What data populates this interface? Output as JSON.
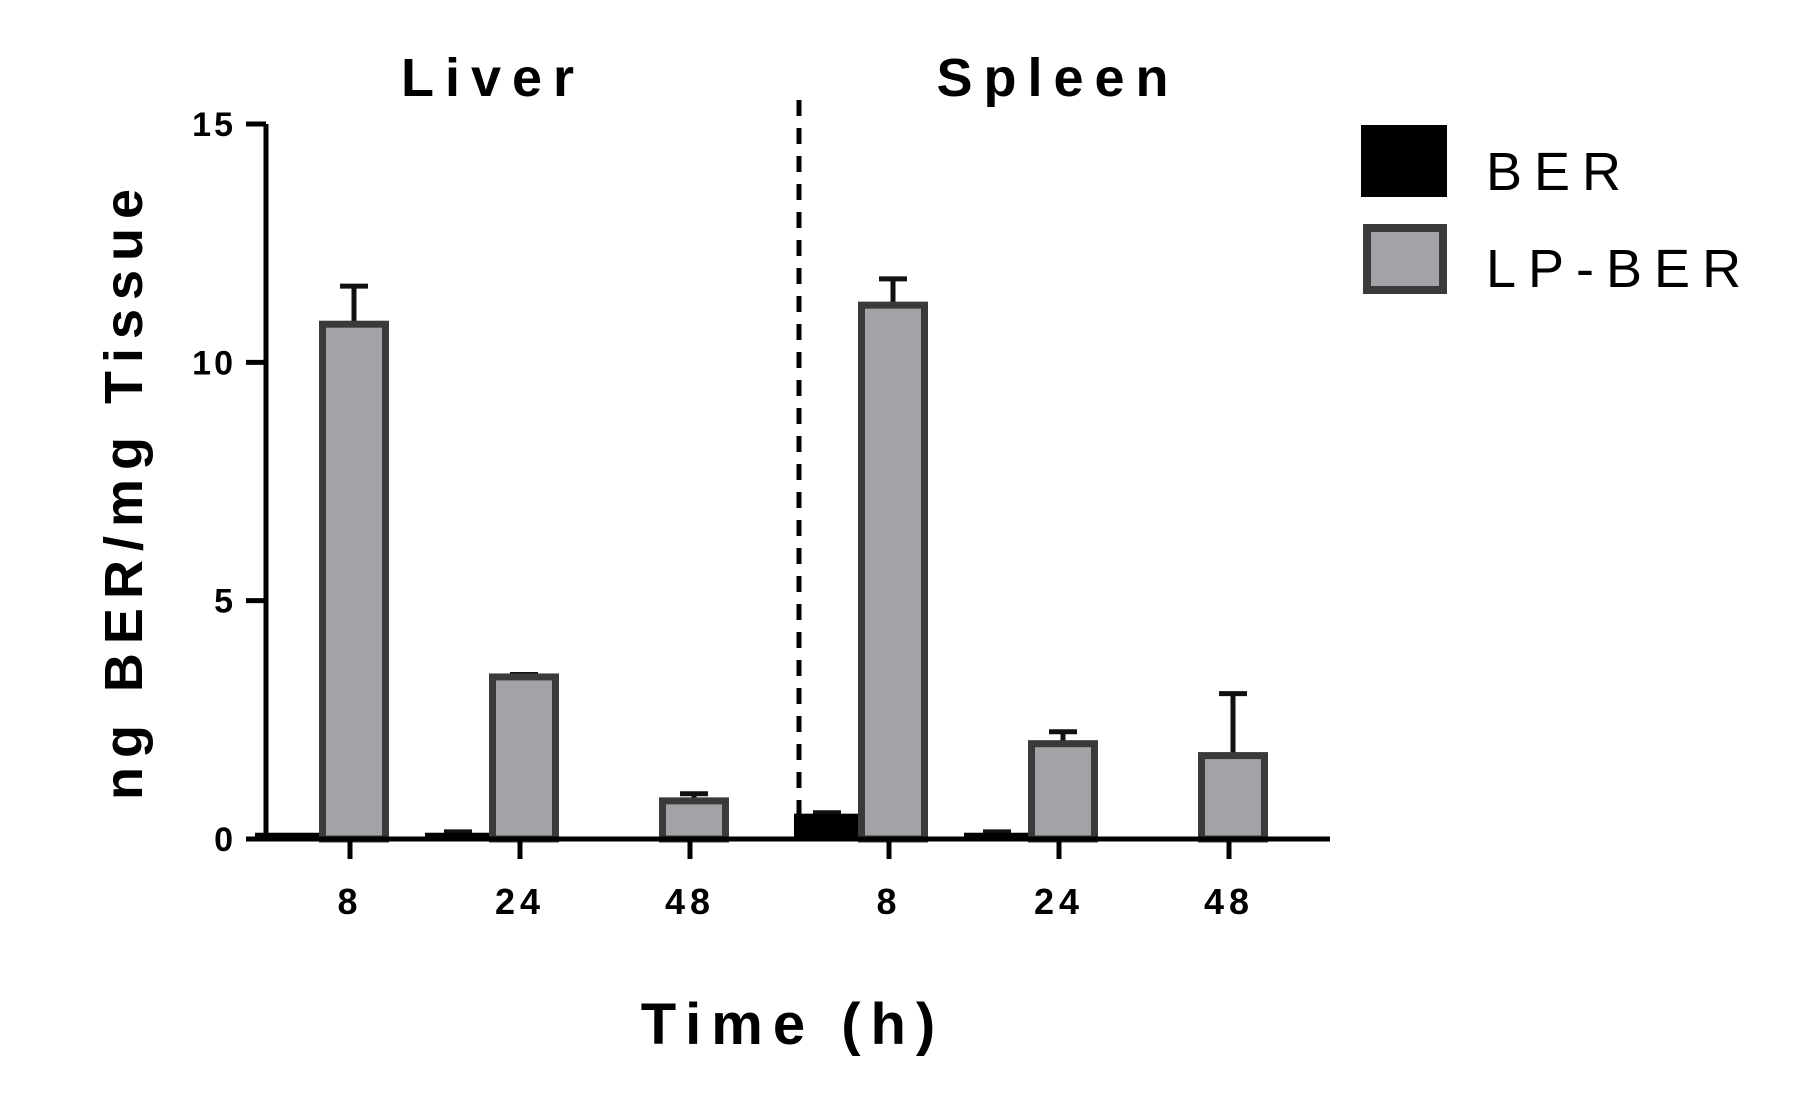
{
  "chart_data": {
    "type": "bar",
    "group_labels": [
      "Liver",
      "Spleen"
    ],
    "categories": [
      "8",
      "24",
      "48",
      "8",
      "24",
      "48"
    ],
    "xlabel": "Time (h)",
    "ylabel": "ng BER/mg Tissue",
    "ylim": [
      0,
      15
    ],
    "yticks": [
      0,
      5,
      10,
      15
    ],
    "legend_position": "right",
    "series": [
      {
        "name": "BER",
        "color": "#000000",
        "stroke": "#000000",
        "values": [
          0.1,
          0.1,
          0,
          0.5,
          0.1,
          0
        ],
        "errors": [
          0,
          0.05,
          0,
          0.05,
          0.05,
          0
        ]
      },
      {
        "name": "LP-BER",
        "color": "#a3a3a7",
        "stroke": "#3a3a3a",
        "values": [
          10.8,
          3.4,
          0.8,
          11.2,
          2.0,
          1.75
        ],
        "errors": [
          0.8,
          0.05,
          0.15,
          0.55,
          0.25,
          1.3
        ]
      }
    ]
  }
}
